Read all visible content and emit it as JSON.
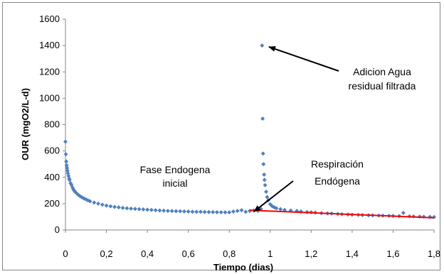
{
  "chart_data": {
    "type": "scatter",
    "xlabel": "Tiempo (dias)",
    "ylabel": "OUR (mgO2/L-d)",
    "xlim": [
      0,
      1.8
    ],
    "ylim": [
      0,
      1600
    ],
    "x_ticks": [
      "0",
      "0,2",
      "0,4",
      "0,6",
      "0,8",
      "1",
      "1,2",
      "1,4",
      "1,6",
      "1,8"
    ],
    "y_ticks": [
      "0",
      "200",
      "400",
      "600",
      "800",
      "1000",
      "1200",
      "1400",
      "1600"
    ],
    "x_tick_values": [
      0,
      0.2,
      0.4,
      0.6,
      0.8,
      1.0,
      1.2,
      1.4,
      1.6,
      1.8
    ],
    "y_tick_values": [
      0,
      200,
      400,
      600,
      800,
      1000,
      1200,
      1400,
      1600
    ],
    "grid": false,
    "colors": {
      "points": "#4f81bd",
      "trend": "#ff0000",
      "arrow": "#000000"
    },
    "series": [
      {
        "x": [
          0.0,
          0.002,
          0.004,
          0.006,
          0.008,
          0.01,
          0.012,
          0.015,
          0.018,
          0.02,
          0.025,
          0.03,
          0.035,
          0.04,
          0.045,
          0.05,
          0.06,
          0.07,
          0.08,
          0.09,
          0.1,
          0.11,
          0.12,
          0.14,
          0.16,
          0.18,
          0.2,
          0.22,
          0.24,
          0.26,
          0.28,
          0.3,
          0.32,
          0.34,
          0.36,
          0.38,
          0.4,
          0.42,
          0.44,
          0.46,
          0.48,
          0.5,
          0.52,
          0.54,
          0.56,
          0.58,
          0.6,
          0.62,
          0.64,
          0.66,
          0.68,
          0.7,
          0.72,
          0.74,
          0.76,
          0.78,
          0.8,
          0.82,
          0.84,
          0.86,
          0.88,
          0.9,
          0.92,
          0.94,
          0.955,
          0.96,
          0.963,
          0.965,
          0.967,
          0.97,
          0.972,
          0.975,
          0.98,
          0.985,
          0.99,
          1.0,
          1.01,
          1.02,
          1.03,
          1.05,
          1.07,
          1.1,
          1.13,
          1.15,
          1.18,
          1.2,
          1.22,
          1.25,
          1.28,
          1.3,
          1.33,
          1.35,
          1.38,
          1.4,
          1.43,
          1.45,
          1.48,
          1.5,
          1.53,
          1.55,
          1.58,
          1.6,
          1.63,
          1.65,
          1.68,
          1.7,
          1.73,
          1.75,
          1.78,
          1.8
        ],
        "y": [
          670,
          575,
          520,
          490,
          470,
          450,
          430,
          410,
          390,
          380,
          355,
          340,
          320,
          305,
          295,
          285,
          270,
          258,
          248,
          240,
          232,
          225,
          218,
          208,
          200,
          192,
          185,
          180,
          175,
          172,
          168,
          165,
          162,
          160,
          158,
          156,
          154,
          152,
          150,
          148,
          147,
          145,
          144,
          143,
          142,
          141,
          140,
          139,
          138,
          138,
          137,
          136,
          136,
          135,
          135,
          134,
          134,
          140,
          145,
          150,
          138,
          145,
          148,
          145,
          160,
          1400,
          845,
          580,
          500,
          420,
          380,
          340,
          290,
          250,
          225,
          195,
          180,
          172,
          165,
          158,
          152,
          148,
          145,
          140,
          136,
          135,
          132,
          128,
          126,
          125,
          122,
          120,
          118,
          116,
          115,
          113,
          112,
          111,
          110,
          109,
          108,
          107,
          106,
          130,
          104,
          103,
          102,
          101,
          100,
          98
        ]
      }
    ],
    "trendline": {
      "x": [
        0.9,
        1.8
      ],
      "y": [
        150,
        92
      ]
    },
    "annotations": [
      {
        "text": "Fase Endogena",
        "text2": "inicial"
      },
      {
        "text": "Adicion Agua",
        "text2": "residual filtrada"
      },
      {
        "text": "Respiración",
        "text2": "Endógena"
      }
    ]
  }
}
